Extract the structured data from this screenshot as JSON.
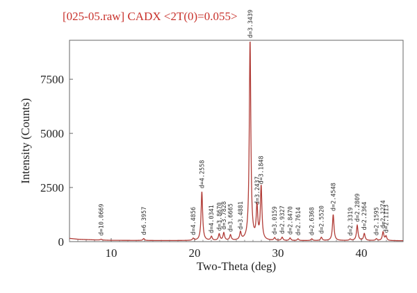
{
  "chart_data": {
    "type": "line",
    "title": "[025-05.raw] CADX <2T(0)=0.055>",
    "xlabel": "Two-Theta (deg)",
    "ylabel": "Intensity (Counts)",
    "xlim": [
      5,
      45
    ],
    "ylim": [
      0,
      9300
    ],
    "xticks": [
      10,
      20,
      30,
      40
    ],
    "yticks": [
      0,
      2500,
      5000,
      7500
    ],
    "grid": false,
    "line_color": "#b03a35",
    "title_color": "#c8312b",
    "baseline": [
      [
        5,
        150
      ],
      [
        6,
        110
      ],
      [
        8,
        80
      ],
      [
        10,
        60
      ],
      [
        15,
        50
      ],
      [
        20,
        45
      ],
      [
        25,
        40
      ],
      [
        30,
        40
      ],
      [
        35,
        45
      ],
      [
        40,
        50
      ],
      [
        45,
        40
      ]
    ],
    "peaks": [
      {
        "x": 8.79,
        "y": 40,
        "label": "d=10.0669"
      },
      {
        "x": 13.9,
        "y": 90,
        "label": "d=6.3957"
      },
      {
        "x": 19.84,
        "y": 90,
        "label": "d=4.4856"
      },
      {
        "x": 20.87,
        "y": 2250,
        "label": "d=4.2558"
      },
      {
        "x": 22.02,
        "y": 180,
        "label": "d=4.0341"
      },
      {
        "x": 22.95,
        "y": 300,
        "label": "d=3.8670"
      },
      {
        "x": 23.5,
        "y": 350,
        "label": "d=3.7828"
      },
      {
        "x": 24.3,
        "y": 250,
        "label": "d=3.6665"
      },
      {
        "x": 25.5,
        "y": 350,
        "label": "d=3.4881"
      },
      {
        "x": 26.65,
        "y": 9200,
        "label": "d=3.3439"
      },
      {
        "x": 27.48,
        "y": 1500,
        "label": "d=3.2437"
      },
      {
        "x": 27.98,
        "y": 2450,
        "label": "d=3.1848"
      },
      {
        "x": 29.6,
        "y": 120,
        "label": "d=3.0159"
      },
      {
        "x": 30.5,
        "y": 150,
        "label": "d=2.9327"
      },
      {
        "x": 31.45,
        "y": 120,
        "label": "d=2.8470"
      },
      {
        "x": 32.4,
        "y": 80,
        "label": "d=2.7614"
      },
      {
        "x": 34.05,
        "y": 80,
        "label": "d=2.6368"
      },
      {
        "x": 35.2,
        "y": 150,
        "label": "d=2.5520"
      },
      {
        "x": 36.62,
        "y": 1200,
        "label": "d=2.4548"
      },
      {
        "x": 38.65,
        "y": 60,
        "label": "d=2.3319"
      },
      {
        "x": 39.5,
        "y": 700,
        "label": "d=2.2809"
      },
      {
        "x": 40.35,
        "y": 320,
        "label": "d=2.2364"
      },
      {
        "x": 41.8,
        "y": 80,
        "label": "d=2.1595"
      },
      {
        "x": 42.6,
        "y": 400,
        "label": "d=2.1274"
      },
      {
        "x": 42.95,
        "y": 200,
        "label": "d=2.1113"
      }
    ]
  }
}
